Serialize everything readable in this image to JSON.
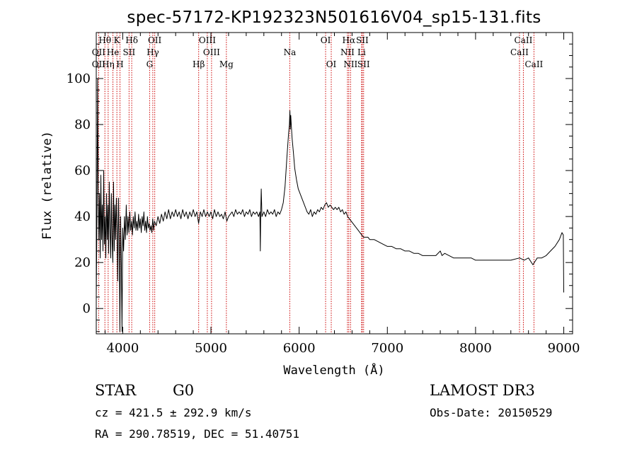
{
  "chart_data": {
    "type": "line",
    "title": "spec-57172-KP192323N501616V04_sp15-131.fits",
    "xlabel": "Wavelength (Å)",
    "ylabel": "Flux (relative)",
    "xlim": [
      3700,
      9100
    ],
    "ylim": [
      -11,
      120
    ],
    "xticks": [
      4000,
      5000,
      6000,
      7000,
      8000,
      9000
    ],
    "yticks": [
      0,
      20,
      40,
      60,
      80,
      100
    ],
    "series": [
      {
        "name": "spectrum",
        "points": [
          [
            3700,
            5
          ],
          [
            3708,
            40
          ],
          [
            3715,
            100
          ],
          [
            3722,
            55
          ],
          [
            3730,
            30
          ],
          [
            3738,
            50
          ],
          [
            3745,
            22
          ],
          [
            3752,
            58
          ],
          [
            3760,
            30
          ],
          [
            3768,
            45
          ],
          [
            3776,
            25
          ],
          [
            3784,
            60
          ],
          [
            3792,
            28
          ],
          [
            3800,
            40
          ],
          [
            3808,
            22
          ],
          [
            3816,
            50
          ],
          [
            3824,
            30
          ],
          [
            3832,
            45
          ],
          [
            3840,
            24
          ],
          [
            3848,
            55
          ],
          [
            3856,
            35
          ],
          [
            3864,
            22
          ],
          [
            3872,
            50
          ],
          [
            3880,
            30
          ],
          [
            3888,
            20
          ],
          [
            3896,
            55
          ],
          [
            3904,
            25
          ],
          [
            3912,
            45
          ],
          [
            3920,
            30
          ],
          [
            3928,
            48
          ],
          [
            3936,
            35
          ],
          [
            3944,
            12
          ],
          [
            3952,
            48
          ],
          [
            3960,
            30
          ],
          [
            3968,
            -10
          ],
          [
            3976,
            40
          ],
          [
            3984,
            20
          ],
          [
            3992,
            -10
          ],
          [
            4000,
            35
          ],
          [
            4010,
            25
          ],
          [
            4020,
            40
          ],
          [
            4030,
            30
          ],
          [
            4040,
            45
          ],
          [
            4050,
            32
          ],
          [
            4060,
            40
          ],
          [
            4070,
            33
          ],
          [
            4080,
            42
          ],
          [
            4090,
            34
          ],
          [
            4100,
            38
          ],
          [
            4110,
            32
          ],
          [
            4120,
            40
          ],
          [
            4130,
            35
          ],
          [
            4140,
            42
          ],
          [
            4150,
            34
          ],
          [
            4160,
            38
          ],
          [
            4170,
            34
          ],
          [
            4180,
            41
          ],
          [
            4190,
            35
          ],
          [
            4200,
            39
          ],
          [
            4210,
            33
          ],
          [
            4220,
            40
          ],
          [
            4230,
            36
          ],
          [
            4240,
            42
          ],
          [
            4250,
            34
          ],
          [
            4260,
            38
          ],
          [
            4270,
            33
          ],
          [
            4280,
            40
          ],
          [
            4290,
            35
          ],
          [
            4300,
            37
          ],
          [
            4310,
            34
          ],
          [
            4320,
            36
          ],
          [
            4330,
            33
          ],
          [
            4340,
            39
          ],
          [
            4350,
            34
          ],
          [
            4360,
            38
          ],
          [
            4380,
            36
          ],
          [
            4400,
            40
          ],
          [
            4420,
            37
          ],
          [
            4440,
            41
          ],
          [
            4460,
            38
          ],
          [
            4480,
            42
          ],
          [
            4500,
            39
          ],
          [
            4520,
            43
          ],
          [
            4540,
            39
          ],
          [
            4560,
            42
          ],
          [
            4580,
            40
          ],
          [
            4600,
            43
          ],
          [
            4620,
            40
          ],
          [
            4640,
            42
          ],
          [
            4660,
            39
          ],
          [
            4680,
            43
          ],
          [
            4700,
            40
          ],
          [
            4720,
            42
          ],
          [
            4740,
            39
          ],
          [
            4760,
            42
          ],
          [
            4780,
            40
          ],
          [
            4800,
            43
          ],
          [
            4820,
            40
          ],
          [
            4840,
            42
          ],
          [
            4860,
            37
          ],
          [
            4880,
            42
          ],
          [
            4900,
            40
          ],
          [
            4920,
            43
          ],
          [
            4940,
            40
          ],
          [
            4960,
            42
          ],
          [
            4980,
            40
          ],
          [
            5000,
            42
          ],
          [
            5020,
            39
          ],
          [
            5040,
            43
          ],
          [
            5060,
            40
          ],
          [
            5080,
            42
          ],
          [
            5100,
            40
          ],
          [
            5120,
            41
          ],
          [
            5140,
            39
          ],
          [
            5160,
            42
          ],
          [
            5180,
            38
          ],
          [
            5200,
            40
          ],
          [
            5220,
            41
          ],
          [
            5240,
            42
          ],
          [
            5260,
            40
          ],
          [
            5280,
            43
          ],
          [
            5300,
            41
          ],
          [
            5320,
            42
          ],
          [
            5340,
            41
          ],
          [
            5360,
            43
          ],
          [
            5380,
            40
          ],
          [
            5400,
            42
          ],
          [
            5420,
            41
          ],
          [
            5440,
            43
          ],
          [
            5460,
            40
          ],
          [
            5480,
            42
          ],
          [
            5500,
            41
          ],
          [
            5520,
            42
          ],
          [
            5540,
            40
          ],
          [
            5555,
            42
          ],
          [
            5560,
            25
          ],
          [
            5565,
            42
          ],
          [
            5570,
            52
          ],
          [
            5578,
            40
          ],
          [
            5600,
            42
          ],
          [
            5620,
            40
          ],
          [
            5640,
            43
          ],
          [
            5660,
            41
          ],
          [
            5680,
            42
          ],
          [
            5700,
            41
          ],
          [
            5720,
            43
          ],
          [
            5740,
            40
          ],
          [
            5760,
            42
          ],
          [
            5780,
            41
          ],
          [
            5800,
            43
          ],
          [
            5820,
            46
          ],
          [
            5840,
            53
          ],
          [
            5860,
            65
          ],
          [
            5880,
            76
          ],
          [
            5890,
            80
          ],
          [
            5895,
            86
          ],
          [
            5900,
            78
          ],
          [
            5905,
            84
          ],
          [
            5912,
            79
          ],
          [
            5920,
            74
          ],
          [
            5935,
            68
          ],
          [
            5950,
            61
          ],
          [
            5970,
            56
          ],
          [
            5990,
            52
          ],
          [
            6010,
            50
          ],
          [
            6030,
            48
          ],
          [
            6050,
            46
          ],
          [
            6070,
            44
          ],
          [
            6090,
            42
          ],
          [
            6110,
            41
          ],
          [
            6130,
            43
          ],
          [
            6150,
            40
          ],
          [
            6170,
            42
          ],
          [
            6190,
            41
          ],
          [
            6210,
            43
          ],
          [
            6230,
            42
          ],
          [
            6250,
            44
          ],
          [
            6270,
            43
          ],
          [
            6290,
            45
          ],
          [
            6310,
            46
          ],
          [
            6330,
            44
          ],
          [
            6350,
            45
          ],
          [
            6370,
            44
          ],
          [
            6390,
            43
          ],
          [
            6410,
            44
          ],
          [
            6430,
            43
          ],
          [
            6450,
            44
          ],
          [
            6470,
            42
          ],
          [
            6490,
            43
          ],
          [
            6510,
            41
          ],
          [
            6530,
            42
          ],
          [
            6550,
            40
          ],
          [
            6570,
            39
          ],
          [
            6590,
            38
          ],
          [
            6610,
            37
          ],
          [
            6630,
            36
          ],
          [
            6650,
            35
          ],
          [
            6670,
            34
          ],
          [
            6690,
            33
          ],
          [
            6710,
            32
          ],
          [
            6730,
            31
          ],
          [
            6750,
            31
          ],
          [
            6780,
            31
          ],
          [
            6800,
            30
          ],
          [
            6850,
            30
          ],
          [
            6900,
            29
          ],
          [
            6950,
            28
          ],
          [
            7000,
            27
          ],
          [
            7050,
            27
          ],
          [
            7100,
            26
          ],
          [
            7150,
            26
          ],
          [
            7200,
            25
          ],
          [
            7250,
            25
          ],
          [
            7300,
            24
          ],
          [
            7350,
            24
          ],
          [
            7400,
            23
          ],
          [
            7450,
            23
          ],
          [
            7500,
            23
          ],
          [
            7550,
            23
          ],
          [
            7600,
            25
          ],
          [
            7620,
            23
          ],
          [
            7650,
            24
          ],
          [
            7700,
            23
          ],
          [
            7750,
            22
          ],
          [
            7800,
            22
          ],
          [
            7850,
            22
          ],
          [
            7900,
            22
          ],
          [
            7950,
            22
          ],
          [
            8000,
            21
          ],
          [
            8100,
            21
          ],
          [
            8200,
            21
          ],
          [
            8300,
            21
          ],
          [
            8400,
            21
          ],
          [
            8500,
            22
          ],
          [
            8550,
            21
          ],
          [
            8600,
            22
          ],
          [
            8650,
            19
          ],
          [
            8700,
            22
          ],
          [
            8750,
            22
          ],
          [
            8800,
            23
          ],
          [
            8850,
            25
          ],
          [
            8900,
            27
          ],
          [
            8950,
            30
          ],
          [
            8980,
            33
          ],
          [
            8995,
            32
          ],
          [
            9000,
            7
          ]
        ]
      }
    ],
    "annotations": [
      {
        "label": "Hθ",
        "x": 3798,
        "row": 0
      },
      {
        "label": "OII",
        "x": 3727,
        "row": 1
      },
      {
        "label": "OII",
        "x": 3727,
        "row": 2
      },
      {
        "label": "Hη",
        "x": 3835,
        "row": 2
      },
      {
        "label": "He",
        "x": 3889,
        "row": 1
      },
      {
        "label": "K",
        "x": 3934,
        "row": 0
      },
      {
        "label": "H",
        "x": 3969,
        "row": 2
      },
      {
        "label": "Hδ",
        "x": 4102,
        "row": 0
      },
      {
        "label": "SII",
        "x": 4072,
        "row": 1
      },
      {
        "label": "OII",
        "x": 4363,
        "row": 0
      },
      {
        "label": "Hγ",
        "x": 4341,
        "row": 1
      },
      {
        "label": "G",
        "x": 4305,
        "row": 2
      },
      {
        "label": "Hβ",
        "x": 4861,
        "row": 2
      },
      {
        "label": "OIII",
        "x": 4959,
        "row": 0
      },
      {
        "label": "OIII",
        "x": 5007,
        "row": 1
      },
      {
        "label": "Mg",
        "x": 5175,
        "row": 2
      },
      {
        "label": "Na",
        "x": 5894,
        "row": 1
      },
      {
        "label": "OI",
        "x": 6300,
        "row": 0
      },
      {
        "label": "OI",
        "x": 6364,
        "row": 2
      },
      {
        "label": "Hα",
        "x": 6563,
        "row": 0
      },
      {
        "label": "NII",
        "x": 6548,
        "row": 1
      },
      {
        "label": "NII",
        "x": 6583,
        "row": 2
      },
      {
        "label": "SII",
        "x": 6716,
        "row": 0
      },
      {
        "label": "Li",
        "x": 6708,
        "row": 1
      },
      {
        "label": "SII",
        "x": 6731,
        "row": 2
      },
      {
        "label": "CaII",
        "x": 8542,
        "row": 0
      },
      {
        "label": "CaII",
        "x": 8498,
        "row": 1
      },
      {
        "label": "CaII",
        "x": 8662,
        "row": 2
      }
    ],
    "line_markers": [
      3727,
      3798,
      3835,
      3889,
      3934,
      3969,
      4072,
      4102,
      4305,
      4341,
      4363,
      4861,
      4959,
      5007,
      5175,
      5894,
      6300,
      6364,
      6548,
      6563,
      6583,
      6708,
      6716,
      6731,
      8498,
      8542,
      8662
    ],
    "colors": {
      "spectrum": "#000000",
      "marker": "#cc0000",
      "axes": "#000000"
    }
  },
  "info": {
    "class": "STAR",
    "subclass": "G0",
    "survey": "LAMOST DR3",
    "cz": "cz = 421.5 ± 292.9 km/s",
    "obs_date": "Obs-Date: 20150529",
    "coords": "RA = 290.78519, DEC =  51.40751"
  }
}
